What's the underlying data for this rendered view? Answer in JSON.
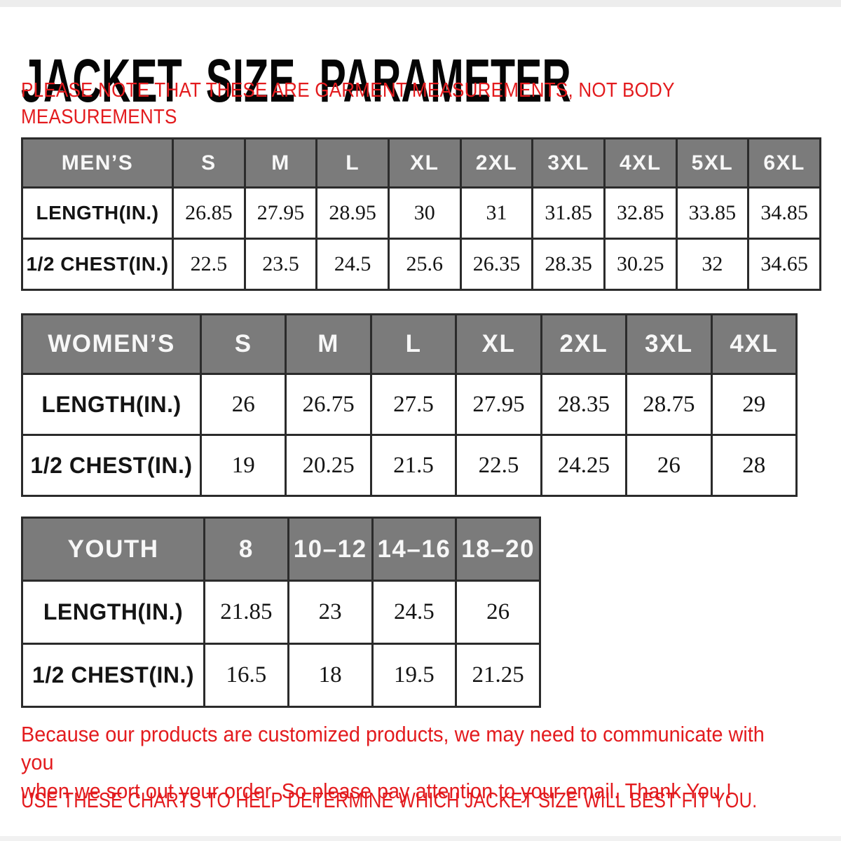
{
  "header": {
    "title": "JACKET SIZE PARAMETER",
    "note": "PLEASE NOTE THAT THESE ARE GARMENT MEASUREMENTS, NOT BODY\nMEASUREMENTS"
  },
  "tables": [
    {
      "id": "mens",
      "name": "MEN’S",
      "sizes": [
        "S",
        "M",
        "L",
        "XL",
        "2XL",
        "3XL",
        "4XL",
        "5XL",
        "6XL"
      ],
      "rows": [
        {
          "label": "LENGTH(IN.)",
          "values": [
            "26.85",
            "27.95",
            "28.95",
            "30",
            "31",
            "31.85",
            "32.85",
            "33.85",
            "34.85"
          ]
        },
        {
          "label": "1/2 CHEST(IN.)",
          "values": [
            "22.5",
            "23.5",
            "24.5",
            "25.6",
            "26.35",
            "28.35",
            "30.25",
            "32",
            "34.65"
          ]
        }
      ]
    },
    {
      "id": "womens",
      "name": "WOMEN’S",
      "sizes": [
        "S",
        "M",
        "L",
        "XL",
        "2XL",
        "3XL",
        "4XL"
      ],
      "rows": [
        {
          "label": "LENGTH(IN.)",
          "values": [
            "26",
            "26.75",
            "27.5",
            "27.95",
            "28.35",
            "28.75",
            "29"
          ]
        },
        {
          "label": "1/2 CHEST(IN.)",
          "values": [
            "19",
            "20.25",
            "21.5",
            "22.5",
            "24.25",
            "26",
            "28"
          ]
        }
      ]
    },
    {
      "id": "youth",
      "name": "YOUTH",
      "sizes": [
        "8",
        "10–12",
        "14–16",
        "18–20"
      ],
      "rows": [
        {
          "label": "LENGTH(IN.)",
          "values": [
            "21.85",
            "23",
            "24.5",
            "26"
          ]
        },
        {
          "label": "1/2 CHEST(IN.)",
          "values": [
            "16.5",
            "18",
            "19.5",
            "21.25"
          ]
        }
      ]
    }
  ],
  "footer": {
    "paragraph": "Because our products are customized products, we may need to communicate with you\nwhen we sort out your order. So please pay attention to your email. Thank You !",
    "advice": "USE THESE CHARTS TO HELP DETERMINE WHICH JACKET SIZE WILL BEST FIT YOU."
  },
  "colors": {
    "accent_red": "#e31b1e",
    "header_gray": "#7b7b7b",
    "border_dark": "#2b2b2b",
    "text_dark": "#141414"
  }
}
